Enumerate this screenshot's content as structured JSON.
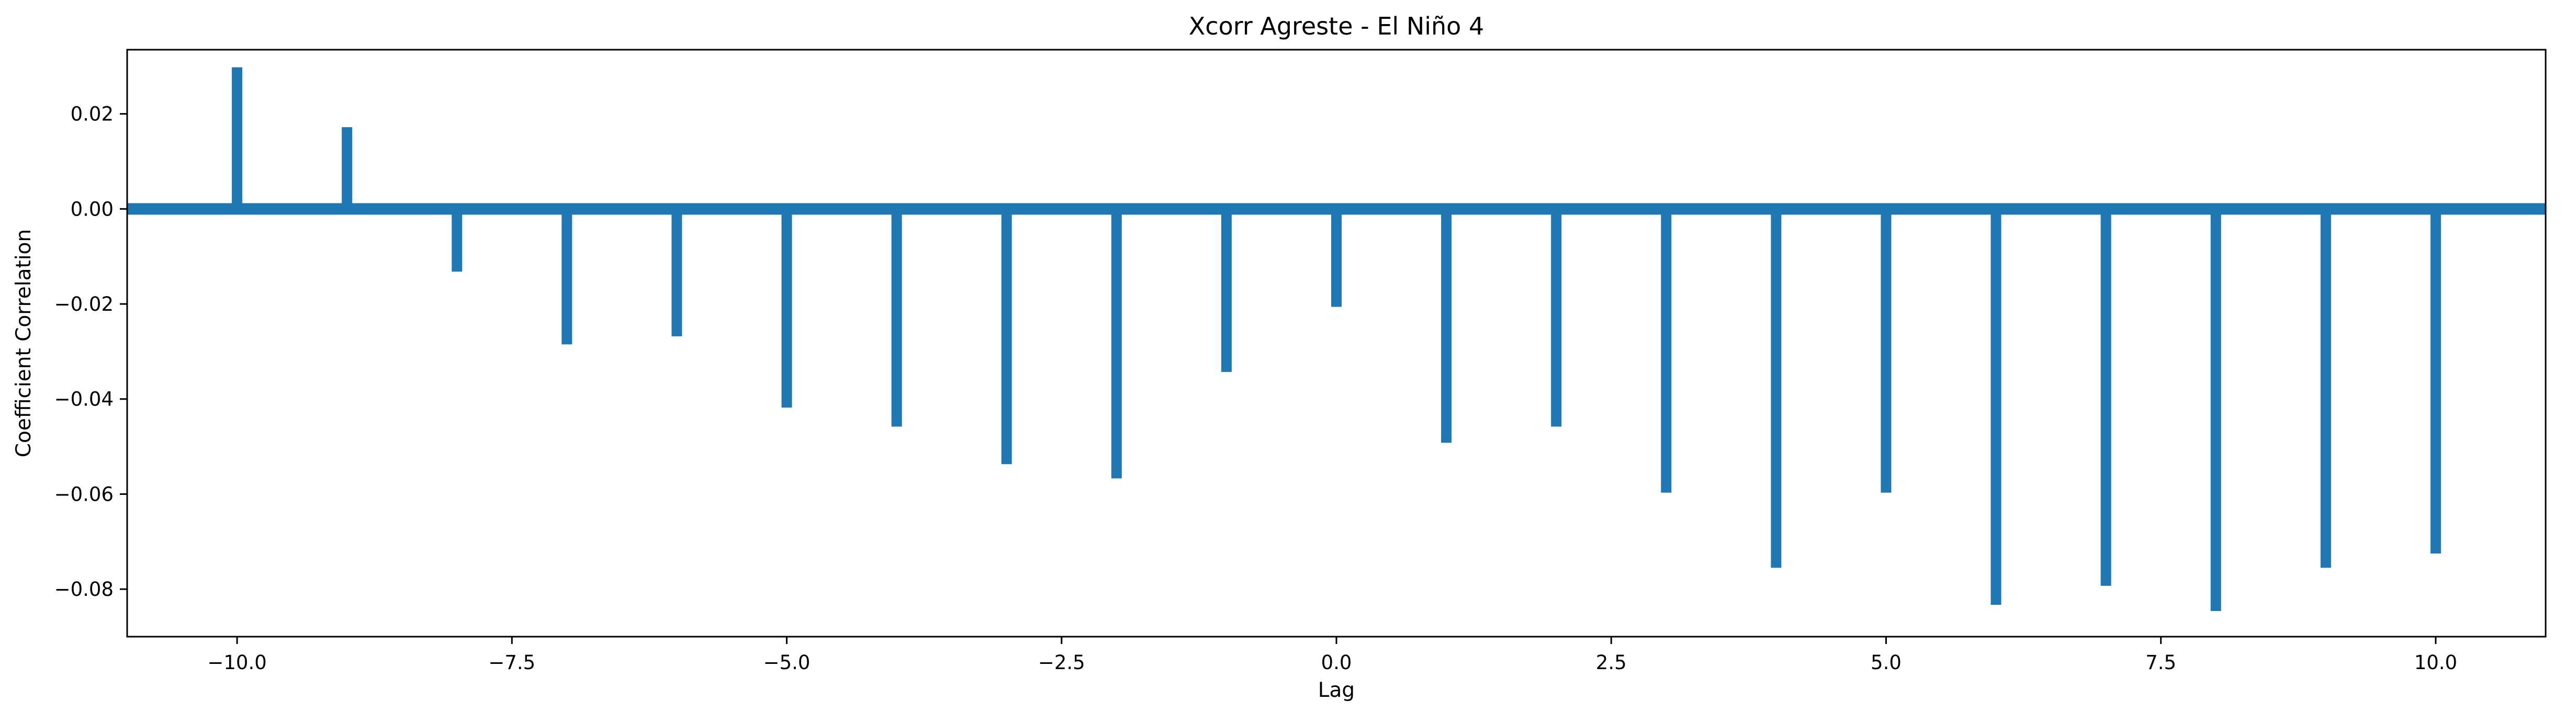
{
  "chart_data": {
    "type": "bar",
    "title": "Xcorr Agreste - El Niño 4",
    "xlabel": "Lag",
    "ylabel": "Coefficient Correlation",
    "xlim": [
      -11,
      11
    ],
    "ylim": [
      -0.09,
      0.0335
    ],
    "x": [
      -10,
      -9,
      -8,
      -7,
      -6,
      -5,
      -4,
      -3,
      -2,
      -1,
      0,
      1,
      2,
      3,
      4,
      5,
      6,
      7,
      8,
      9,
      10
    ],
    "values": [
      0.0298,
      0.0172,
      -0.0132,
      -0.0285,
      -0.0268,
      -0.0418,
      -0.0458,
      -0.0537,
      -0.0567,
      -0.0343,
      -0.0206,
      -0.0492,
      -0.0458,
      -0.0597,
      -0.0755,
      -0.0597,
      -0.0833,
      -0.0793,
      -0.0846,
      -0.0755,
      -0.0725
    ],
    "baseline": 0,
    "xticks": [
      -10.0,
      -7.5,
      -5.0,
      -2.5,
      0.0,
      2.5,
      5.0,
      7.5,
      10.0
    ],
    "xtick_labels": [
      "−10.0",
      "−7.5",
      "−5.0",
      "−2.5",
      "0.0",
      "2.5",
      "5.0",
      "7.5",
      "10.0"
    ],
    "yticks": [
      0.02,
      0.0,
      -0.02,
      -0.04,
      -0.06,
      -0.08
    ],
    "ytick_labels": [
      "0.02",
      "0.00",
      "−0.02",
      "−0.04",
      "−0.06",
      "−0.08"
    ],
    "grid": false,
    "legend": "none",
    "colors": {
      "bars": "#1f77b4",
      "baseline": "#1f77b4",
      "axes": "#000000"
    }
  }
}
